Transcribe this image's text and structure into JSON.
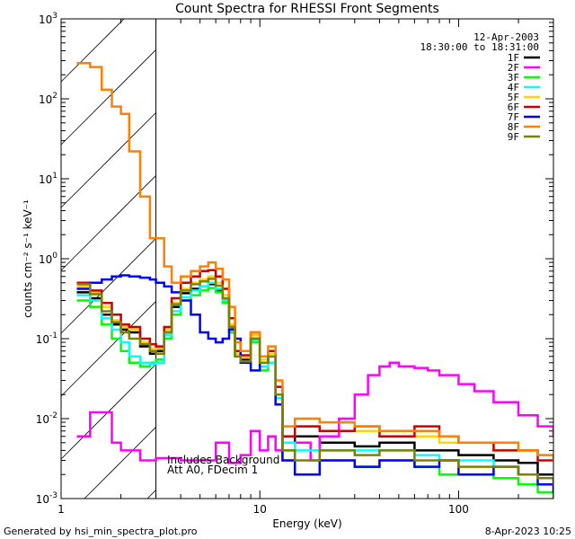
{
  "chart_data": {
    "type": "line",
    "title": "Count Spectra for RHESSI Front Segments",
    "xlabel": "Energy (keV)",
    "ylabel": "counts cm⁻² s⁻¹ keV⁻¹",
    "xscale": "log",
    "yscale": "log",
    "xlim": [
      1,
      300
    ],
    "ylim": [
      0.001,
      1000
    ],
    "x_tick_labels": [
      {
        "value": 1,
        "label": "1"
      },
      {
        "value": 10,
        "label": "10"
      },
      {
        "value": 100,
        "label": "100"
      }
    ],
    "y_tick_labels": [
      {
        "value": 0.001,
        "base": "10",
        "exp": "-3"
      },
      {
        "value": 0.01,
        "base": "10",
        "exp": "-2"
      },
      {
        "value": 0.1,
        "base": "10",
        "exp": "-1"
      },
      {
        "value": 1,
        "base": "10",
        "exp": "0"
      },
      {
        "value": 10,
        "base": "10",
        "exp": "1"
      },
      {
        "value": 100,
        "base": "10",
        "exp": "2"
      },
      {
        "value": 1000,
        "base": "10",
        "exp": "3"
      }
    ],
    "date": "12-Apr-2003",
    "time_range": "18:30:00 to 18:31:00",
    "hatched_region_keV": [
      1,
      3
    ],
    "annotations": [
      "Includes Background",
      "Att A0, FDecim 1"
    ],
    "series": [
      {
        "name": "1F",
        "color": "#000000",
        "x": [
          1.2,
          1.4,
          1.6,
          1.8,
          2.0,
          2.2,
          2.5,
          2.8,
          3.0,
          3.3,
          3.6,
          4.0,
          4.5,
          5.0,
          5.5,
          6.0,
          6.5,
          7.0,
          7.5,
          8.0,
          9.0,
          10.0,
          11.0,
          12.0,
          13.0,
          15.0,
          20.0,
          30.0,
          40.0,
          60.0,
          80.0,
          100.0,
          150.0,
          200.0,
          250.0,
          300.0
        ],
        "y": [
          0.38,
          0.32,
          0.2,
          0.15,
          0.13,
          0.12,
          0.08,
          0.065,
          0.07,
          0.12,
          0.25,
          0.37,
          0.42,
          0.45,
          0.48,
          0.4,
          0.3,
          0.14,
          0.06,
          0.055,
          0.1,
          0.05,
          0.06,
          0.02,
          0.005,
          0.006,
          0.005,
          0.0045,
          0.005,
          0.004,
          0.004,
          0.0035,
          0.003,
          0.0028,
          0.002,
          0.002
        ]
      },
      {
        "name": "2F",
        "color": "#ff00ff",
        "x": [
          1.2,
          1.4,
          1.6,
          1.8,
          2.0,
          2.5,
          3.0,
          4.0,
          5.0,
          6.0,
          7.0,
          8.0,
          9.0,
          10.0,
          11.0,
          12.0,
          13.0,
          15.0,
          18.0,
          20.0,
          25.0,
          30.0,
          35.0,
          40.0,
          45.0,
          50.0,
          60.0,
          70.0,
          80.0,
          100.0,
          120.0,
          150.0,
          200.0,
          250.0,
          300.0
        ],
        "y": [
          0.006,
          0.012,
          0.012,
          0.005,
          0.004,
          0.003,
          0.0032,
          0.003,
          0.003,
          0.005,
          0.0028,
          0.0035,
          0.007,
          0.004,
          0.006,
          0.004,
          0.003,
          0.005,
          0.003,
          0.006,
          0.01,
          0.02,
          0.035,
          0.045,
          0.05,
          0.045,
          0.043,
          0.04,
          0.035,
          0.027,
          0.022,
          0.016,
          0.011,
          0.008,
          0.006
        ]
      },
      {
        "name": "3F",
        "color": "#00ff00",
        "x": [
          1.2,
          1.4,
          1.6,
          1.8,
          2.0,
          2.2,
          2.5,
          2.8,
          3.0,
          3.3,
          3.6,
          4.0,
          4.5,
          5.0,
          5.5,
          6.0,
          6.5,
          7.0,
          7.5,
          8.0,
          9.0,
          10.0,
          11.0,
          12.0,
          13.0,
          15.0,
          20.0,
          30.0,
          40.0,
          60.0,
          80.0,
          100.0,
          150.0,
          200.0,
          250.0,
          300.0
        ],
        "y": [
          0.3,
          0.25,
          0.15,
          0.1,
          0.07,
          0.05,
          0.045,
          0.05,
          0.055,
          0.1,
          0.2,
          0.3,
          0.35,
          0.4,
          0.43,
          0.38,
          0.28,
          0.12,
          0.06,
          0.05,
          0.09,
          0.04,
          0.05,
          0.015,
          0.004,
          0.002,
          0.003,
          0.0025,
          0.003,
          0.0025,
          0.002,
          0.002,
          0.0018,
          0.0015,
          0.0012,
          0.001
        ]
      },
      {
        "name": "4F",
        "color": "#00ffff",
        "x": [
          1.2,
          1.4,
          1.6,
          1.8,
          2.0,
          2.2,
          2.5,
          2.8,
          3.0,
          3.3,
          3.6,
          4.0,
          4.5,
          5.0,
          5.5,
          6.0,
          6.5,
          7.0,
          7.5,
          8.0,
          9.0,
          10.0,
          11.0,
          12.0,
          13.0,
          15.0,
          20.0,
          30.0,
          40.0,
          60.0,
          80.0,
          100.0,
          150.0,
          200.0,
          250.0,
          300.0
        ],
        "y": [
          0.35,
          0.3,
          0.18,
          0.13,
          0.09,
          0.06,
          0.05,
          0.048,
          0.05,
          0.11,
          0.22,
          0.33,
          0.4,
          0.45,
          0.5,
          0.42,
          0.3,
          0.13,
          0.06,
          0.05,
          0.095,
          0.045,
          0.05,
          0.018,
          0.005,
          0.004,
          0.004,
          0.004,
          0.004,
          0.0035,
          0.003,
          0.003,
          0.0025,
          0.002,
          0.0018,
          0.0015
        ]
      },
      {
        "name": "5F",
        "color": "#ffd700",
        "x": [
          1.2,
          1.4,
          1.6,
          1.8,
          2.0,
          2.2,
          2.5,
          2.8,
          3.0,
          3.3,
          3.6,
          4.0,
          4.5,
          5.0,
          5.5,
          6.0,
          6.5,
          7.0,
          7.5,
          8.0,
          9.0,
          10.0,
          11.0,
          12.0,
          13.0,
          15.0,
          20.0,
          30.0,
          40.0,
          60.0,
          80.0,
          100.0,
          150.0,
          200.0,
          250.0,
          300.0
        ],
        "y": [
          0.45,
          0.38,
          0.25,
          0.17,
          0.14,
          0.13,
          0.09,
          0.075,
          0.075,
          0.13,
          0.28,
          0.42,
          0.5,
          0.55,
          0.6,
          0.5,
          0.35,
          0.15,
          0.065,
          0.058,
          0.11,
          0.055,
          0.065,
          0.025,
          0.006,
          0.008,
          0.007,
          0.007,
          0.006,
          0.006,
          0.005,
          0.005,
          0.004,
          0.004,
          0.0035,
          0.003
        ]
      },
      {
        "name": "6F",
        "color": "#cc0000",
        "x": [
          1.2,
          1.4,
          1.6,
          1.8,
          2.0,
          2.2,
          2.5,
          2.8,
          3.0,
          3.3,
          3.6,
          4.0,
          4.5,
          5.0,
          5.5,
          6.0,
          6.5,
          7.0,
          7.5,
          8.0,
          9.0,
          10.0,
          11.0,
          12.0,
          13.0,
          15.0,
          20.0,
          30.0,
          40.0,
          60.0,
          80.0,
          100.0,
          150.0,
          200.0,
          250.0,
          300.0
        ],
        "y": [
          0.5,
          0.4,
          0.28,
          0.2,
          0.15,
          0.14,
          0.1,
          0.085,
          0.08,
          0.14,
          0.32,
          0.5,
          0.6,
          0.7,
          0.72,
          0.6,
          0.42,
          0.18,
          0.07,
          0.062,
          0.12,
          0.06,
          0.07,
          0.025,
          0.006,
          0.008,
          0.007,
          0.008,
          0.006,
          0.008,
          0.006,
          0.005,
          0.004,
          0.004,
          0.003,
          0.003
        ]
      },
      {
        "name": "7F",
        "color": "#0000ff",
        "x": [
          1.2,
          1.4,
          1.6,
          1.8,
          2.0,
          2.2,
          2.5,
          2.8,
          3.0,
          3.3,
          3.6,
          4.0,
          4.5,
          5.0,
          5.5,
          6.0,
          6.5,
          7.0,
          7.5,
          8.0,
          9.0,
          10.0,
          11.0,
          12.0,
          13.0,
          15.0,
          20.0,
          30.0,
          40.0,
          60.0,
          80.0,
          100.0,
          150.0,
          200.0,
          250.0,
          300.0
        ],
        "y": [
          0.42,
          0.5,
          0.55,
          0.6,
          0.62,
          0.6,
          0.58,
          0.55,
          0.5,
          0.45,
          0.38,
          0.3,
          0.2,
          0.12,
          0.1,
          0.09,
          0.1,
          0.13,
          0.1,
          0.05,
          0.04,
          0.05,
          0.06,
          0.015,
          0.003,
          0.002,
          0.003,
          0.0025,
          0.003,
          0.0025,
          0.003,
          0.002,
          0.0025,
          0.002,
          0.0015,
          0.0012
        ]
      },
      {
        "name": "8F",
        "color": "#ff7f00",
        "x": [
          1.2,
          1.4,
          1.6,
          1.8,
          2.0,
          2.2,
          2.5,
          2.8,
          3.0,
          3.3,
          3.6,
          4.0,
          4.5,
          5.0,
          5.5,
          6.0,
          6.5,
          7.0,
          7.5,
          8.0,
          9.0,
          10.0,
          11.0,
          12.0,
          13.0,
          15.0,
          20.0,
          30.0,
          40.0,
          60.0,
          80.0,
          100.0,
          150.0,
          200.0,
          250.0,
          300.0
        ],
        "y": [
          280,
          250,
          130,
          80,
          65,
          22,
          6,
          1.8,
          1.8,
          0.8,
          0.5,
          0.6,
          0.7,
          0.8,
          0.9,
          0.75,
          0.55,
          0.25,
          0.09,
          0.07,
          0.12,
          0.06,
          0.08,
          0.03,
          0.008,
          0.01,
          0.009,
          0.008,
          0.007,
          0.007,
          0.006,
          0.005,
          0.005,
          0.004,
          0.0035,
          0.003
        ]
      },
      {
        "name": "9F",
        "color": "#808000",
        "x": [
          1.2,
          1.4,
          1.6,
          1.8,
          2.0,
          2.2,
          2.5,
          2.8,
          3.0,
          3.3,
          3.6,
          4.0,
          4.5,
          5.0,
          5.5,
          6.0,
          6.5,
          7.0,
          7.5,
          8.0,
          9.0,
          10.0,
          11.0,
          12.0,
          13.0,
          15.0,
          20.0,
          30.0,
          40.0,
          60.0,
          80.0,
          100.0,
          150.0,
          200.0,
          250.0,
          300.0
        ],
        "y": [
          0.48,
          0.36,
          0.22,
          0.16,
          0.12,
          0.1,
          0.085,
          0.07,
          0.065,
          0.12,
          0.27,
          0.4,
          0.48,
          0.52,
          0.56,
          0.46,
          0.32,
          0.14,
          0.06,
          0.052,
          0.1,
          0.05,
          0.06,
          0.02,
          0.004,
          0.003,
          0.004,
          0.0035,
          0.004,
          0.003,
          0.003,
          0.0025,
          0.0025,
          0.002,
          0.0018,
          0.0015
        ]
      }
    ]
  },
  "footer": {
    "generated_by": "Generated by hsi_min_spectra_plot.pro",
    "timestamp": "8-Apr-2023 10:25"
  }
}
